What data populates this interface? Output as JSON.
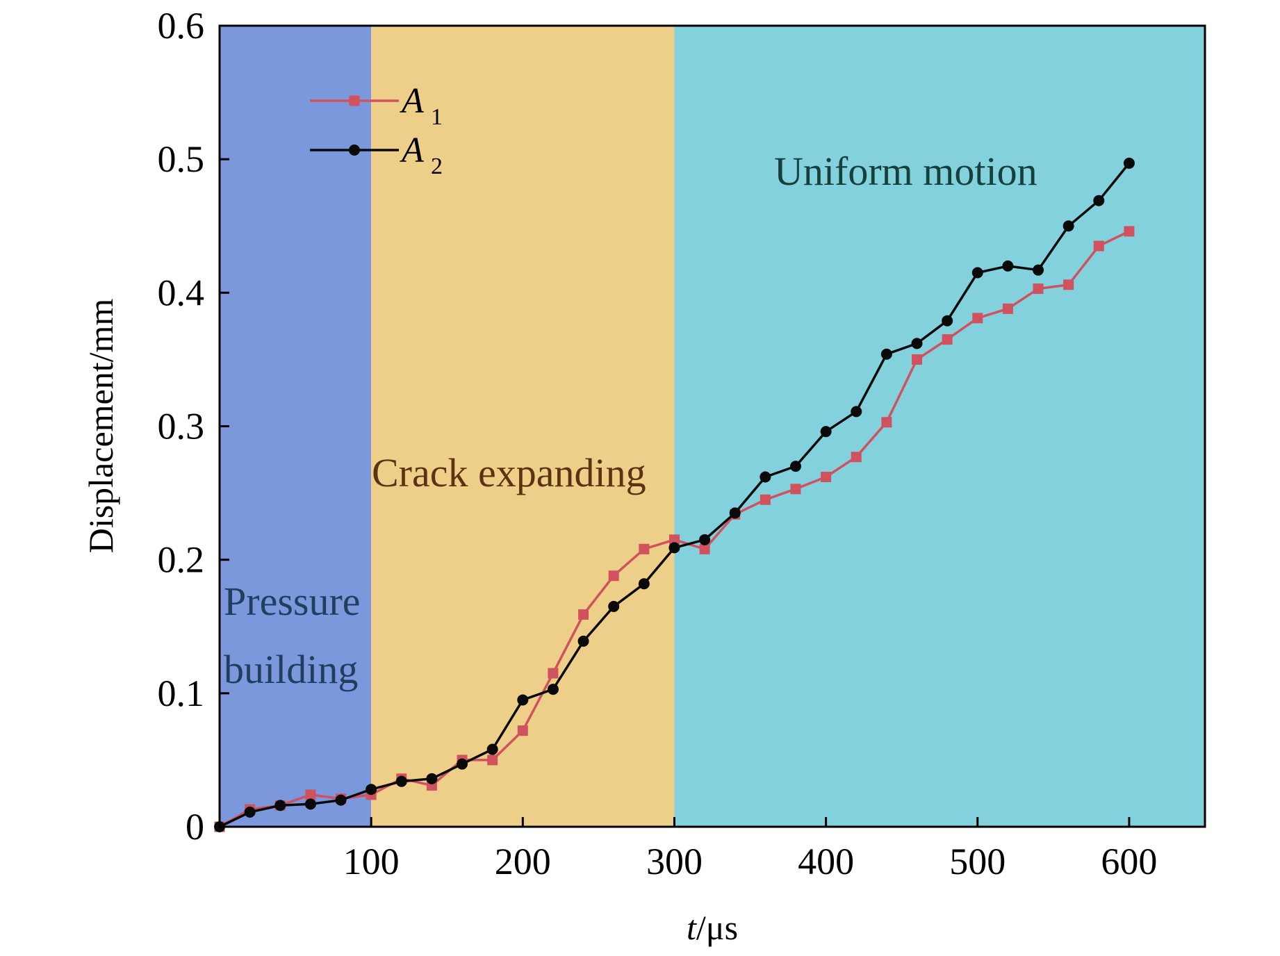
{
  "chart_data": {
    "type": "line",
    "title": "",
    "xlabel_var": "t",
    "xlabel_unit": "/μs",
    "ylabel": "Displacement/mm",
    "xlim": [
      0,
      650
    ],
    "ylim": [
      0,
      0.6
    ],
    "x_ticks": [
      100,
      200,
      300,
      400,
      500,
      600
    ],
    "x_tick_labels": [
      "100",
      "200",
      "300",
      "400",
      "500",
      "600"
    ],
    "y_ticks": [
      0,
      0.1,
      0.2,
      0.3,
      0.4,
      0.5,
      0.6
    ],
    "y_tick_labels": [
      "0",
      "0.1",
      "0.2",
      "0.3",
      "0.4",
      "0.5",
      "0.6"
    ],
    "grid": false,
    "legend_position": "top-left",
    "regions": [
      {
        "x_start": 0,
        "x_end": 100,
        "color": "#7b98dd",
        "label_lines": [
          "Pressure",
          "building"
        ],
        "label_color": "#1f3f5f"
      },
      {
        "x_start": 100,
        "x_end": 300,
        "color": "#eecf8a",
        "label_lines": [
          "Crack expanding"
        ],
        "label_color": "#5b3310"
      },
      {
        "x_start": 300,
        "x_end": 650,
        "color": "#83d1dd",
        "label_lines": [
          "Uniform motion"
        ],
        "label_color": "#15403e"
      }
    ],
    "series": [
      {
        "name": "A",
        "subscript": "1",
        "color": "#d0525e",
        "marker": "square",
        "x": [
          0,
          20,
          40,
          60,
          80,
          100,
          120,
          140,
          160,
          180,
          200,
          220,
          240,
          260,
          280,
          300,
          320,
          340,
          360,
          380,
          400,
          420,
          440,
          460,
          480,
          500,
          520,
          540,
          560,
          580,
          600
        ],
        "y": [
          0,
          0.013,
          0.016,
          0.024,
          0.021,
          0.024,
          0.036,
          0.031,
          0.05,
          0.05,
          0.072,
          0.115,
          0.159,
          0.188,
          0.208,
          0.215,
          0.208,
          0.234,
          0.245,
          0.253,
          0.262,
          0.277,
          0.303,
          0.35,
          0.365,
          0.381,
          0.388,
          0.403,
          0.406,
          0.435,
          0.446
        ]
      },
      {
        "name": "A",
        "subscript": "2",
        "color": "#0a0a0a",
        "marker": "circle",
        "x": [
          0,
          20,
          40,
          60,
          80,
          100,
          120,
          140,
          160,
          180,
          200,
          220,
          240,
          260,
          280,
          300,
          320,
          340,
          360,
          380,
          400,
          420,
          440,
          460,
          480,
          500,
          520,
          540,
          560,
          580,
          600
        ],
        "y": [
          0,
          0.011,
          0.016,
          0.017,
          0.02,
          0.028,
          0.034,
          0.036,
          0.047,
          0.058,
          0.095,
          0.103,
          0.139,
          0.165,
          0.182,
          0.209,
          0.215,
          0.235,
          0.262,
          0.27,
          0.296,
          0.311,
          0.354,
          0.362,
          0.379,
          0.415,
          0.42,
          0.417,
          0.45,
          0.469,
          0.497
        ]
      }
    ]
  }
}
